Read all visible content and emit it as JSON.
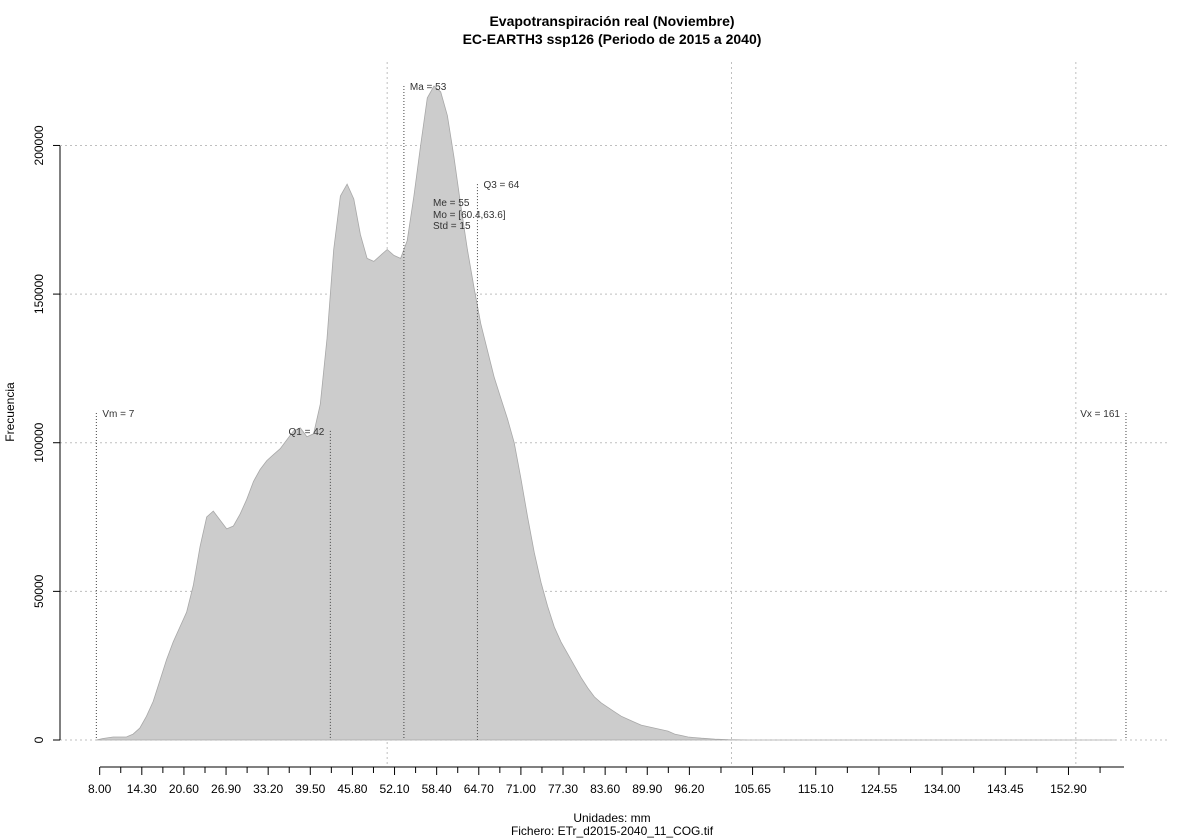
{
  "chart_data": {
    "type": "area",
    "title": "Evapotranspiración real (Noviembre)",
    "subtitle": "EC-EARTH3 ssp126 (Periodo de 2015 a 2040)",
    "xlabel": "Unidades: mm",
    "ylabel": "Frecuencia",
    "caption": "Fichero: ETr_d2015-2040_11_COG.tif",
    "xlim": [
      7,
      163
    ],
    "ylim": [
      0,
      220000
    ],
    "x_ticks": [
      8.0,
      14.3,
      20.6,
      26.9,
      33.2,
      39.5,
      45.8,
      52.1,
      58.4,
      64.7,
      71.0,
      77.3,
      83.6,
      89.9,
      96.2,
      105.65,
      115.1,
      124.55,
      134.0,
      143.45,
      152.9
    ],
    "x_tick_labels": [
      "8.00",
      "14.30",
      "20.60",
      "26.90",
      "33.20",
      "39.50",
      "45.80",
      "52.10",
      "58.40",
      "64.70",
      "71.00",
      "77.30",
      "83.60",
      "89.90",
      "96.20",
      "105.65",
      "115.10",
      "124.55",
      "134.00",
      "143.45",
      "152.90"
    ],
    "x_minor_ticks": [
      11.15,
      17.45,
      23.75,
      30.05,
      36.35,
      42.65,
      48.95,
      55.25,
      61.55,
      67.85,
      74.15,
      80.45,
      86.75,
      93.05,
      100.925,
      110.375,
      119.825,
      129.275,
      138.725,
      148.175,
      157.625
    ],
    "y_ticks": [
      0,
      50000,
      100000,
      150000,
      200000
    ],
    "y_tick_labels": [
      "0",
      "50000",
      "100000",
      "150000",
      "200000"
    ],
    "x_grid": [
      51.0,
      102.5,
      154.0
    ],
    "grid": true,
    "fill_color": "#cccccc",
    "series": [
      {
        "x": [
          7.5,
          8.5,
          10,
          12,
          13,
          14,
          15,
          16,
          17,
          18,
          19,
          20,
          21,
          22,
          23,
          24,
          25,
          26,
          27,
          28,
          29,
          30,
          31,
          32,
          33,
          34,
          35,
          36,
          37,
          38,
          39,
          40,
          41,
          42,
          43,
          44,
          45,
          46,
          47,
          48,
          49,
          50,
          51,
          52,
          53,
          54,
          55,
          56,
          57,
          58,
          59,
          60,
          61,
          62,
          63,
          64,
          65,
          66,
          67,
          68,
          69,
          70,
          71,
          72,
          73,
          74,
          75,
          76,
          77,
          78,
          79,
          80,
          81,
          82,
          83,
          84,
          85,
          86,
          87,
          88,
          89,
          90,
          91,
          92,
          93,
          94,
          95,
          96,
          97,
          98,
          100,
          102,
          105,
          110,
          120,
          140,
          160
        ],
        "y": [
          0,
          500,
          1000,
          1000,
          2000,
          4000,
          8000,
          13000,
          20000,
          27000,
          33000,
          38000,
          43000,
          52000,
          65000,
          75000,
          77000,
          74000,
          71000,
          72000,
          76000,
          81000,
          87000,
          91000,
          94000,
          96000,
          98000,
          101000,
          104000,
          105000,
          102000,
          103000,
          113000,
          135000,
          165000,
          183000,
          187000,
          182000,
          170000,
          162000,
          161000,
          163000,
          165000,
          163000,
          162000,
          168000,
          183000,
          200000,
          216000,
          220000,
          218000,
          210000,
          196000,
          180000,
          165000,
          152000,
          140000,
          131000,
          122000,
          115000,
          108000,
          100000,
          88000,
          75000,
          63000,
          53000,
          45000,
          38000,
          33000,
          29000,
          25000,
          21000,
          17500,
          14500,
          12500,
          11000,
          9500,
          8000,
          7000,
          6000,
          5000,
          4500,
          4000,
          3500,
          3000,
          2000,
          1500,
          1000,
          800,
          600,
          300,
          100,
          0,
          0,
          0,
          0,
          0
        ]
      }
    ],
    "markers": [
      {
        "label": "Vm = 7",
        "x": 7.5,
        "y": 110000,
        "label_side": "right"
      },
      {
        "label": "Q1 = 42",
        "x": 42.5,
        "y": 104000,
        "label_side": "left"
      },
      {
        "label": "Ma = 53",
        "x": 53.5,
        "y": 220000,
        "label_side": "right"
      },
      {
        "label": "Q3 = 64",
        "x": 64.5,
        "y": 187000,
        "label_side": "right"
      },
      {
        "label": "Vx = 161",
        "x": 161.5,
        "y": 110000,
        "label_side": "left"
      }
    ],
    "stats": [
      "Me = 55",
      "Mo = [60.4,63.6]",
      "Std = 15"
    ]
  }
}
